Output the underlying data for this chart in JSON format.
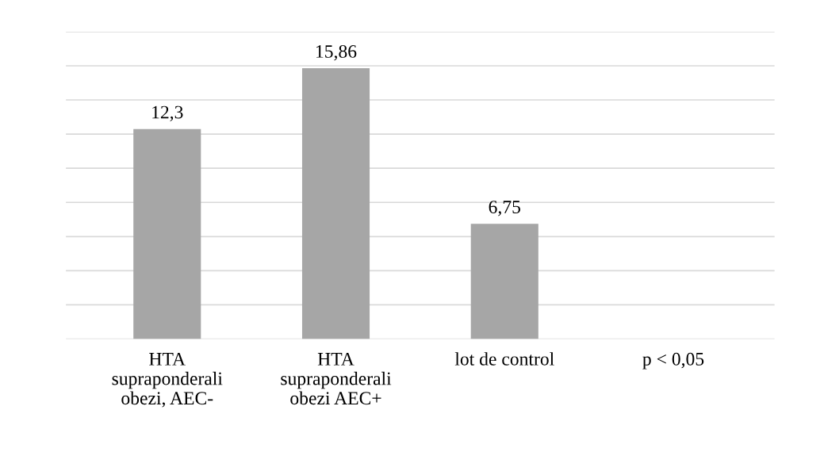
{
  "chart_data": {
    "type": "bar",
    "categories": [
      "HTA\nsupraponderali\nobezi, AEC-",
      "HTA\nsupraponderali\nobezi AEC+",
      "lot de control",
      "p < 0,05"
    ],
    "values": [
      12.3,
      15.86,
      6.75,
      null
    ],
    "value_labels": [
      "12,3",
      "15,86",
      "6,75",
      null
    ],
    "color": "#a6a6a6",
    "ylim": [
      0,
      18
    ],
    "yticks": [
      {
        "value": 0,
        "label": null
      },
      {
        "value": 2,
        "label": null
      },
      {
        "value": 4,
        "label": null
      },
      {
        "value": 6,
        "label": null
      },
      {
        "value": 8,
        "label": null
      },
      {
        "value": 10,
        "label": null
      },
      {
        "value": 12,
        "label": null
      },
      {
        "value": 14,
        "label": null
      },
      {
        "value": 16,
        "label": null
      },
      {
        "value": 18,
        "label": null
      }
    ],
    "tick_labels": "x",
    "grid": "y"
  }
}
